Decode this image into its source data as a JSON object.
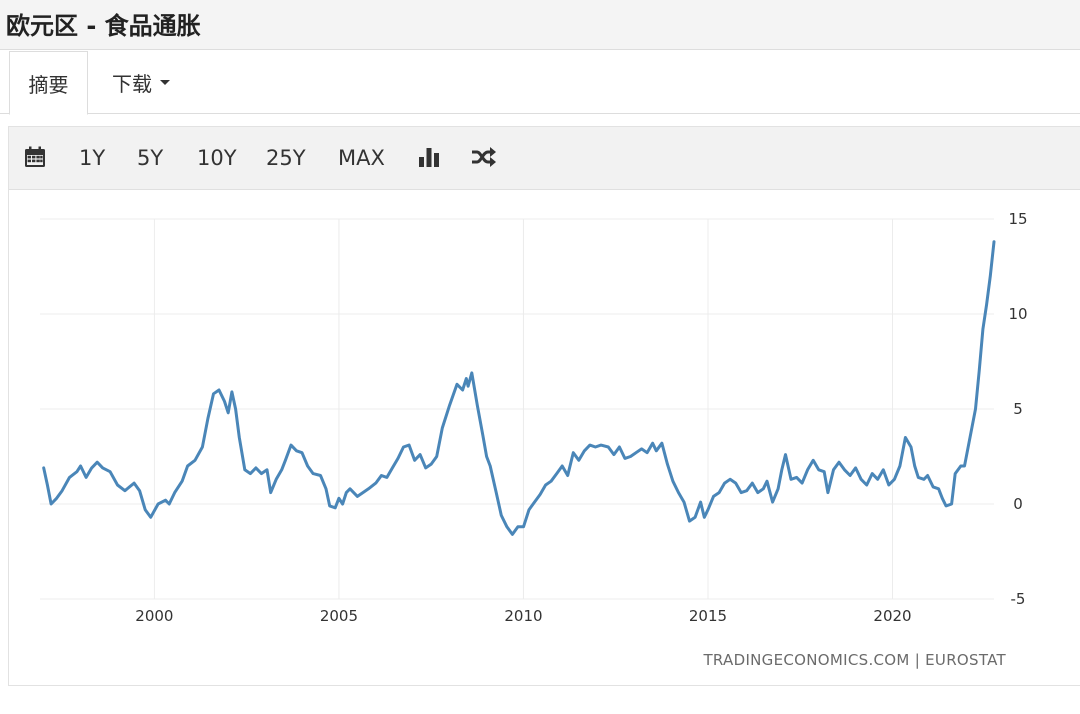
{
  "page": {
    "title": "欧元区 - 食品通胀"
  },
  "tabs": {
    "summary": "摘要",
    "download": "下载"
  },
  "toolbar": {
    "ranges": [
      "1Y",
      "5Y",
      "10Y",
      "25Y",
      "MAX"
    ],
    "icons": [
      "calendar-icon",
      "bar-chart-icon",
      "shuffle-icon"
    ]
  },
  "source": "TRADINGECONOMICS.COM | EUROSTAT",
  "chart_data": {
    "type": "line",
    "title": "",
    "xlabel": "",
    "ylabel": "",
    "xlim": [
      1996.9,
      2022.75
    ],
    "ylim": [
      -5,
      15
    ],
    "x_ticks": [
      2000,
      2005,
      2010,
      2015,
      2020
    ],
    "y_ticks": [
      15,
      10,
      5,
      0,
      -5
    ],
    "y_axis_side": "right",
    "grid": true,
    "line_color": "#4a86b8",
    "series": [
      {
        "name": "",
        "points": [
          [
            1997.0,
            1.9
          ],
          [
            1997.1,
            1.0
          ],
          [
            1997.2,
            0.0
          ],
          [
            1997.35,
            0.3
          ],
          [
            1997.5,
            0.7
          ],
          [
            1997.7,
            1.4
          ],
          [
            1997.9,
            1.7
          ],
          [
            1998.0,
            2.0
          ],
          [
            1998.15,
            1.4
          ],
          [
            1998.3,
            1.9
          ],
          [
            1998.45,
            2.2
          ],
          [
            1998.6,
            1.9
          ],
          [
            1998.8,
            1.7
          ],
          [
            1999.0,
            1.0
          ],
          [
            1999.2,
            0.7
          ],
          [
            1999.45,
            1.1
          ],
          [
            1999.6,
            0.7
          ],
          [
            1999.75,
            -0.3
          ],
          [
            1999.9,
            -0.7
          ],
          [
            2000.1,
            0.0
          ],
          [
            2000.3,
            0.2
          ],
          [
            2000.4,
            0.0
          ],
          [
            2000.55,
            0.6
          ],
          [
            2000.75,
            1.2
          ],
          [
            2000.9,
            2.0
          ],
          [
            2001.1,
            2.3
          ],
          [
            2001.3,
            3.0
          ],
          [
            2001.45,
            4.5
          ],
          [
            2001.6,
            5.8
          ],
          [
            2001.75,
            6.0
          ],
          [
            2001.9,
            5.4
          ],
          [
            2002.0,
            4.8
          ],
          [
            2002.1,
            5.9
          ],
          [
            2002.2,
            5.0
          ],
          [
            2002.3,
            3.5
          ],
          [
            2002.45,
            1.8
          ],
          [
            2002.6,
            1.6
          ],
          [
            2002.75,
            1.9
          ],
          [
            2002.9,
            1.6
          ],
          [
            2003.05,
            1.8
          ],
          [
            2003.15,
            0.6
          ],
          [
            2003.3,
            1.3
          ],
          [
            2003.45,
            1.8
          ],
          [
            2003.55,
            2.3
          ],
          [
            2003.7,
            3.1
          ],
          [
            2003.85,
            2.8
          ],
          [
            2004.0,
            2.7
          ],
          [
            2004.15,
            2.0
          ],
          [
            2004.3,
            1.6
          ],
          [
            2004.5,
            1.5
          ],
          [
            2004.65,
            0.8
          ],
          [
            2004.75,
            -0.1
          ],
          [
            2004.9,
            -0.2
          ],
          [
            2005.0,
            0.3
          ],
          [
            2005.1,
            0.0
          ],
          [
            2005.2,
            0.6
          ],
          [
            2005.3,
            0.8
          ],
          [
            2005.5,
            0.4
          ],
          [
            2005.65,
            0.6
          ],
          [
            2005.8,
            0.8
          ],
          [
            2006.0,
            1.1
          ],
          [
            2006.15,
            1.5
          ],
          [
            2006.3,
            1.4
          ],
          [
            2006.45,
            1.9
          ],
          [
            2006.6,
            2.4
          ],
          [
            2006.75,
            3.0
          ],
          [
            2006.9,
            3.1
          ],
          [
            2007.05,
            2.3
          ],
          [
            2007.2,
            2.6
          ],
          [
            2007.35,
            1.9
          ],
          [
            2007.5,
            2.1
          ],
          [
            2007.65,
            2.5
          ],
          [
            2007.8,
            4.0
          ],
          [
            2008.0,
            5.2
          ],
          [
            2008.2,
            6.3
          ],
          [
            2008.35,
            6.0
          ],
          [
            2008.45,
            6.6
          ],
          [
            2008.5,
            6.2
          ],
          [
            2008.6,
            6.9
          ],
          [
            2008.75,
            5.2
          ],
          [
            2008.9,
            3.6
          ],
          [
            2009.0,
            2.5
          ],
          [
            2009.1,
            2.0
          ],
          [
            2009.25,
            0.7
          ],
          [
            2009.4,
            -0.6
          ],
          [
            2009.55,
            -1.2
          ],
          [
            2009.7,
            -1.6
          ],
          [
            2009.85,
            -1.2
          ],
          [
            2010.0,
            -1.2
          ],
          [
            2010.15,
            -0.3
          ],
          [
            2010.3,
            0.1
          ],
          [
            2010.45,
            0.5
          ],
          [
            2010.6,
            1.0
          ],
          [
            2010.75,
            1.2
          ],
          [
            2010.9,
            1.6
          ],
          [
            2011.05,
            2.0
          ],
          [
            2011.2,
            1.5
          ],
          [
            2011.35,
            2.7
          ],
          [
            2011.5,
            2.3
          ],
          [
            2011.65,
            2.8
          ],
          [
            2011.8,
            3.1
          ],
          [
            2011.95,
            3.0
          ],
          [
            2012.1,
            3.1
          ],
          [
            2012.3,
            3.0
          ],
          [
            2012.45,
            2.6
          ],
          [
            2012.6,
            3.0
          ],
          [
            2012.75,
            2.4
          ],
          [
            2012.9,
            2.5
          ],
          [
            2013.05,
            2.7
          ],
          [
            2013.2,
            2.9
          ],
          [
            2013.35,
            2.7
          ],
          [
            2013.5,
            3.2
          ],
          [
            2013.6,
            2.8
          ],
          [
            2013.75,
            3.2
          ],
          [
            2013.9,
            2.1
          ],
          [
            2014.05,
            1.2
          ],
          [
            2014.2,
            0.6
          ],
          [
            2014.35,
            0.1
          ],
          [
            2014.5,
            -0.9
          ],
          [
            2014.65,
            -0.7
          ],
          [
            2014.8,
            0.1
          ],
          [
            2014.9,
            -0.7
          ],
          [
            2015.0,
            -0.3
          ],
          [
            2015.15,
            0.4
          ],
          [
            2015.3,
            0.6
          ],
          [
            2015.45,
            1.1
          ],
          [
            2015.6,
            1.3
          ],
          [
            2015.75,
            1.1
          ],
          [
            2015.9,
            0.6
          ],
          [
            2016.05,
            0.7
          ],
          [
            2016.2,
            1.1
          ],
          [
            2016.35,
            0.6
          ],
          [
            2016.5,
            0.8
          ],
          [
            2016.6,
            1.2
          ],
          [
            2016.75,
            0.1
          ],
          [
            2016.9,
            0.8
          ],
          [
            2017.0,
            1.8
          ],
          [
            2017.1,
            2.6
          ],
          [
            2017.25,
            1.3
          ],
          [
            2017.4,
            1.4
          ],
          [
            2017.55,
            1.1
          ],
          [
            2017.7,
            1.8
          ],
          [
            2017.85,
            2.3
          ],
          [
            2018.0,
            1.8
          ],
          [
            2018.15,
            1.7
          ],
          [
            2018.25,
            0.6
          ],
          [
            2018.4,
            1.8
          ],
          [
            2018.55,
            2.2
          ],
          [
            2018.7,
            1.8
          ],
          [
            2018.85,
            1.5
          ],
          [
            2019.0,
            1.9
          ],
          [
            2019.15,
            1.3
          ],
          [
            2019.3,
            1.0
          ],
          [
            2019.45,
            1.6
          ],
          [
            2019.6,
            1.3
          ],
          [
            2019.75,
            1.8
          ],
          [
            2019.9,
            1.0
          ],
          [
            2020.05,
            1.3
          ],
          [
            2020.2,
            2.0
          ],
          [
            2020.35,
            3.5
          ],
          [
            2020.5,
            3.0
          ],
          [
            2020.6,
            2.0
          ],
          [
            2020.7,
            1.4
          ],
          [
            2020.85,
            1.3
          ],
          [
            2020.95,
            1.5
          ],
          [
            2021.1,
            0.9
          ],
          [
            2021.25,
            0.8
          ],
          [
            2021.35,
            0.3
          ],
          [
            2021.45,
            -0.1
          ],
          [
            2021.6,
            0.0
          ],
          [
            2021.7,
            1.6
          ],
          [
            2021.85,
            2.0
          ],
          [
            2021.95,
            2.0
          ],
          [
            2022.1,
            3.5
          ],
          [
            2022.25,
            5.0
          ],
          [
            2022.35,
            7.0
          ],
          [
            2022.45,
            9.2
          ],
          [
            2022.55,
            10.5
          ],
          [
            2022.65,
            12.0
          ],
          [
            2022.75,
            13.8
          ]
        ]
      }
    ]
  }
}
